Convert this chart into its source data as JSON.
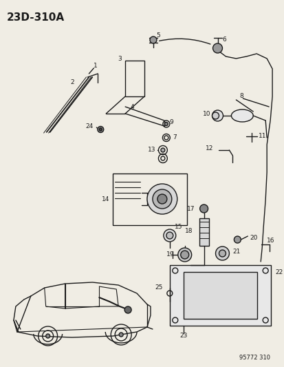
{
  "title": "23D-310A",
  "footer": "95772 310",
  "bg_color": "#f0ede4",
  "line_color": "#1a1a1a",
  "label_color": "#1a1a1a",
  "title_fontsize": 11,
  "label_fontsize": 6.5,
  "footer_fontsize": 6,
  "fig_width": 4.14,
  "fig_height": 5.33,
  "dpi": 100
}
